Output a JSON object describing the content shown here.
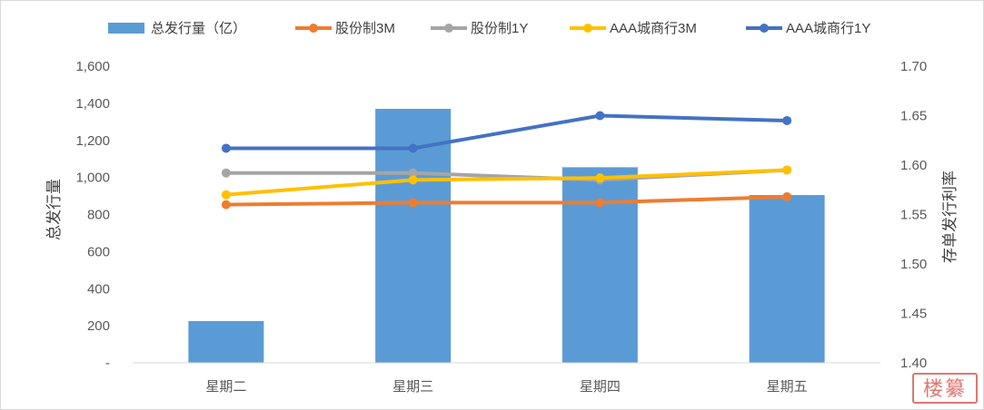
{
  "chart_data": {
    "type": "bar",
    "categories": [
      "星期二",
      "星期三",
      "星期四",
      "星期五"
    ],
    "bar_series": {
      "name": "总发行量（亿）",
      "color": "#5b9bd5",
      "values": [
        225,
        1370,
        1055,
        905
      ]
    },
    "line_series": [
      {
        "name": "股份制3M",
        "color": "#ed7d31",
        "values": [
          1.56,
          1.562,
          1.562,
          1.568
        ]
      },
      {
        "name": "股份制1Y",
        "color": "#a5a5a5",
        "values": [
          1.592,
          1.592,
          1.585,
          1.595
        ]
      },
      {
        "name": "AAA城商行3M",
        "color": "#ffc000",
        "values": [
          1.57,
          1.585,
          1.587,
          1.595
        ]
      },
      {
        "name": "AAA城商行1Y",
        "color": "#4472c4",
        "values": [
          1.617,
          1.617,
          1.65,
          1.645
        ]
      }
    ],
    "ylabel": "总发行量",
    "y2label": "存单发行利率",
    "ylim": [
      0,
      1600
    ],
    "y2lim": [
      1.4,
      1.7
    ],
    "yticks": [
      "-",
      "200",
      "400",
      "600",
      "800",
      "1,000",
      "1,200",
      "1,400",
      "1,600"
    ],
    "y2ticks": [
      "1.40",
      "1.45",
      "1.50",
      "1.55",
      "1.60",
      "1.65",
      "1.70"
    ],
    "grid": false,
    "legend": "top"
  },
  "watermark": {
    "text": "楼纂"
  }
}
